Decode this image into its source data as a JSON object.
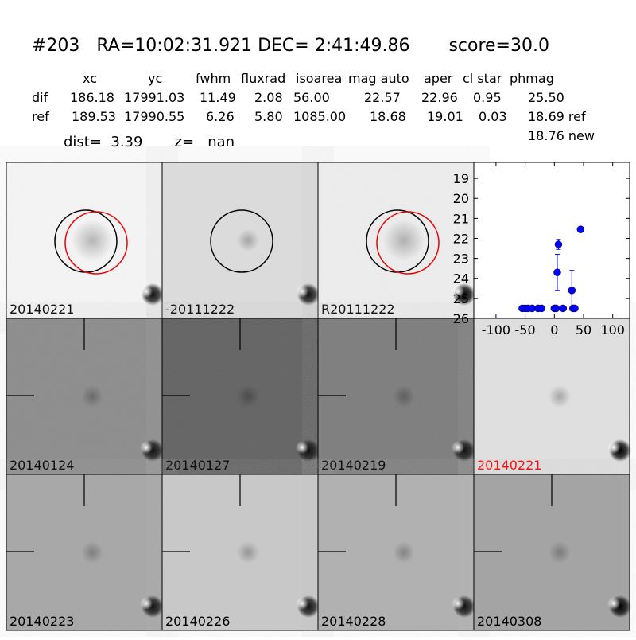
{
  "header": {
    "title": "#203   RA=10:02:31.921 DEC= 2:41:49.86       score=30.0"
  },
  "table": {
    "columns": [
      "xc",
      "yc",
      "fwhm",
      "fluxrad",
      "isoarea",
      "mag auto",
      "aper",
      "cl star",
      "phmag"
    ],
    "rows": [
      [
        "dif",
        "186.18",
        "17991.03",
        "11.49",
        "2.08",
        "56.00",
        "22.57",
        "22.96",
        "0.95",
        "25.50"
      ],
      [
        "ref",
        "189.53",
        "17990.55",
        "6.26",
        "5.80",
        "1085.00",
        "18.68",
        "19.01",
        "0.03",
        "18.69 ref"
      ]
    ],
    "note": "18.76 new"
  },
  "distance": "dist=  3.39       z=   nan",
  "stamps": [
    "20140221",
    "-20111222",
    "R20111222",
    "20140124",
    "20140127",
    "20140219",
    "20140221",
    "20140223",
    "20140226",
    "20140228",
    "20140308"
  ],
  "chart_data": {
    "type": "scatter",
    "series": [
      {
        "color": "#0000ff",
        "x": [
          -55,
          -50,
          -45,
          -38,
          -28,
          -22,
          0,
          3,
          5,
          7,
          15,
          30,
          32,
          35,
          45
        ],
        "values": [
          25.5,
          25.5,
          25.5,
          25.5,
          25.5,
          25.5,
          25.5,
          25.5,
          23.7,
          22.3,
          25.5,
          24.6,
          25.5,
          25.5,
          21.55
        ],
        "errors": [
          null,
          null,
          null,
          null,
          null,
          null,
          null,
          null,
          0.9,
          0.25,
          null,
          1.0,
          null,
          null,
          null
        ]
      }
    ],
    "xlim": [
      -138,
      129
    ],
    "ylim": [
      26,
      18.2
    ],
    "xticks": [
      -100,
      -50,
      0,
      50,
      100
    ],
    "yticks": [
      19,
      20,
      21,
      22,
      23,
      24,
      25,
      26
    ],
    "grid": false
  }
}
